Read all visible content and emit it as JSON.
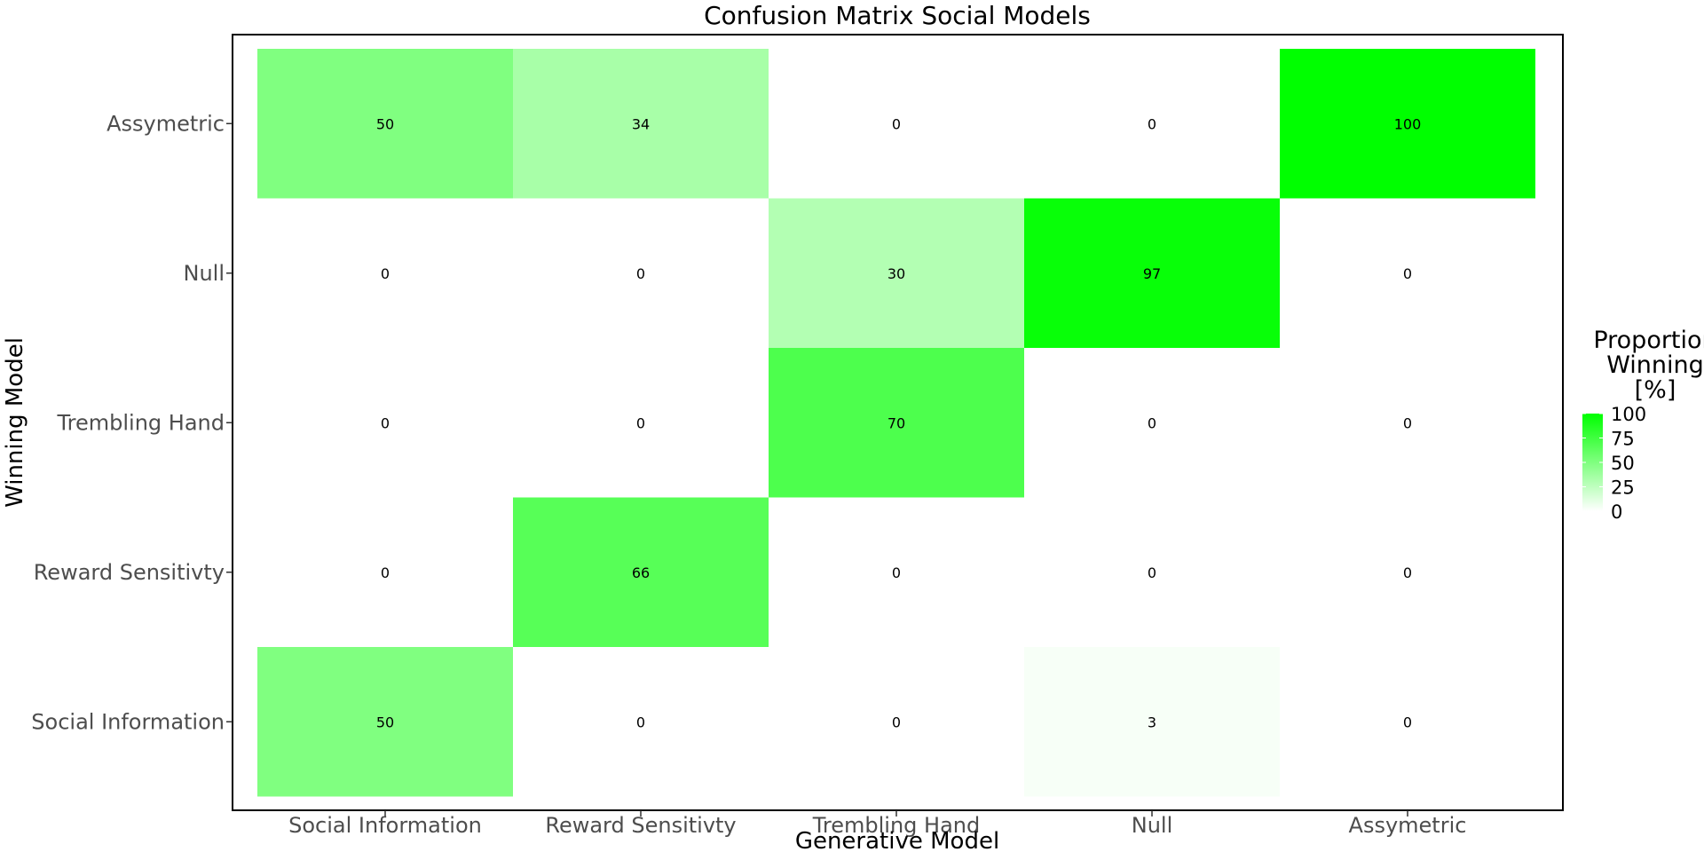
{
  "chart_data": {
    "type": "heatmap",
    "title": "Confusion Matrix Social Models",
    "xlabel": "Generative Model",
    "ylabel": "Winning Model",
    "x_categories": [
      "Social Information",
      "Reward Sensitivty",
      "Trembling Hand",
      "Null",
      "Assymetric"
    ],
    "y_categories": [
      "Social Information",
      "Reward Sensitivty",
      "Trembling Hand",
      "Null",
      "Assymetric"
    ],
    "values": [
      [
        50,
        0,
        0,
        3,
        0
      ],
      [
        0,
        66,
        0,
        0,
        0
      ],
      [
        0,
        0,
        70,
        0,
        0
      ],
      [
        0,
        0,
        30,
        97,
        0
      ],
      [
        50,
        34,
        0,
        0,
        100
      ]
    ],
    "legend": {
      "title": [
        "Proportion",
        "Winning",
        "[%]"
      ],
      "ticks": [
        0,
        25,
        50,
        75,
        100
      ],
      "range": [
        0,
        100
      ],
      "placement": "right"
    },
    "colors": {
      "low": "#ffffff",
      "high": "#00ff00",
      "panel_border": "#000000"
    },
    "grid": false
  }
}
